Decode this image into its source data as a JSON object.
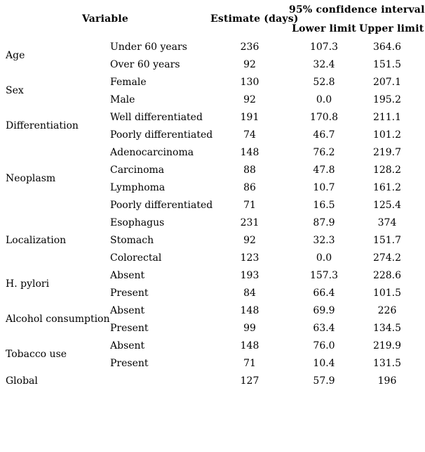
{
  "table": {
    "header": {
      "variable": "Variable",
      "estimate": "Estimate (days)",
      "ci": "95% confidence interval",
      "lower": "Lower limit",
      "upper": "Upper limit"
    },
    "groups": [
      {
        "name": "Age",
        "rows": [
          {
            "level": "Under 60 years",
            "estimate": "236",
            "lower": "107.3",
            "upper": "364.6"
          },
          {
            "level": "Over 60 years",
            "estimate": "92",
            "lower": "32.4",
            "upper": "151.5"
          }
        ]
      },
      {
        "name": "Sex",
        "rows": [
          {
            "level": "Female",
            "estimate": "130",
            "lower": "52.8",
            "upper": "207.1"
          },
          {
            "level": "Male",
            "estimate": "92",
            "lower": "0.0",
            "upper": "195.2"
          }
        ]
      },
      {
        "name": "Differentiation",
        "rows": [
          {
            "level": "Well differentiated",
            "estimate": "191",
            "lower": "170.8",
            "upper": "211.1"
          },
          {
            "level": "Poorly differentiated",
            "estimate": "74",
            "lower": "46.7",
            "upper": "101.2"
          }
        ]
      },
      {
        "name": "Neoplasm",
        "rows": [
          {
            "level": "Adenocarcinoma",
            "estimate": "148",
            "lower": "76.2",
            "upper": "219.7"
          },
          {
            "level": "Carcinoma",
            "estimate": "88",
            "lower": "47.8",
            "upper": "128.2"
          },
          {
            "level": "Lymphoma",
            "estimate": "86",
            "lower": "10.7",
            "upper": "161.2"
          },
          {
            "level": "Poorly differentiated",
            "estimate": "71",
            "lower": "16.5",
            "upper": "125.4"
          }
        ]
      },
      {
        "name": "Localization",
        "rows": [
          {
            "level": "Esophagus",
            "estimate": "231",
            "lower": "87.9",
            "upper": "374"
          },
          {
            "level": "Stomach",
            "estimate": "92",
            "lower": "32.3",
            "upper": "151.7"
          },
          {
            "level": "Colorectal",
            "estimate": "123",
            "lower": "0.0",
            "upper": "274.2"
          }
        ]
      },
      {
        "name": "H. pylori",
        "rows": [
          {
            "level": "Absent",
            "estimate": "193",
            "lower": "157.3",
            "upper": "228.6"
          },
          {
            "level": "Present",
            "estimate": "84",
            "lower": "66.4",
            "upper": "101.5"
          }
        ]
      },
      {
        "name": "Alcohol consumption",
        "rows": [
          {
            "level": "Absent",
            "estimate": "148",
            "lower": "69.9",
            "upper": "226"
          },
          {
            "level": "Present",
            "estimate": "99",
            "lower": "63.4",
            "upper": "134.5"
          }
        ]
      },
      {
        "name": "Tobacco use",
        "rows": [
          {
            "level": "Absent",
            "estimate": "148",
            "lower": "76.0",
            "upper": "219.9"
          },
          {
            "level": "Present",
            "estimate": "71",
            "lower": "10.4",
            "upper": "131.5"
          }
        ]
      },
      {
        "name": "Global",
        "rows": [
          {
            "level": "",
            "estimate": "127",
            "lower": "57.9",
            "upper": "196"
          }
        ]
      }
    ]
  },
  "chart_data": {
    "type": "table",
    "title": "",
    "columns": [
      "Variable (group)",
      "Variable (level)",
      "Estimate (days)",
      "95% CI Lower limit",
      "95% CI Upper limit"
    ],
    "rows": [
      [
        "Age",
        "Under 60 years",
        236,
        107.3,
        364.6
      ],
      [
        "Age",
        "Over 60 years",
        92,
        32.4,
        151.5
      ],
      [
        "Sex",
        "Female",
        130,
        52.8,
        207.1
      ],
      [
        "Sex",
        "Male",
        92,
        0.0,
        195.2
      ],
      [
        "Differentiation",
        "Well differentiated",
        191,
        170.8,
        211.1
      ],
      [
        "Differentiation",
        "Poorly differentiated",
        74,
        46.7,
        101.2
      ],
      [
        "Neoplasm",
        "Adenocarcinoma",
        148,
        76.2,
        219.7
      ],
      [
        "Neoplasm",
        "Carcinoma",
        88,
        47.8,
        128.2
      ],
      [
        "Neoplasm",
        "Lymphoma",
        86,
        10.7,
        161.2
      ],
      [
        "Neoplasm",
        "Poorly differentiated",
        71,
        16.5,
        125.4
      ],
      [
        "Localization",
        "Esophagus",
        231,
        87.9,
        374
      ],
      [
        "Localization",
        "Stomach",
        92,
        32.3,
        151.7
      ],
      [
        "Localization",
        "Colorectal",
        123,
        0.0,
        274.2
      ],
      [
        "H. pylori",
        "Absent",
        193,
        157.3,
        228.6
      ],
      [
        "H. pylori",
        "Present",
        84,
        66.4,
        101.5
      ],
      [
        "Alcohol consumption",
        "Absent",
        148,
        69.9,
        226
      ],
      [
        "Alcohol consumption",
        "Present",
        99,
        63.4,
        134.5
      ],
      [
        "Tobacco use",
        "Absent",
        148,
        76.0,
        219.9
      ],
      [
        "Tobacco use",
        "Present",
        71,
        10.4,
        131.5
      ],
      [
        "Global",
        "",
        127,
        57.9,
        196
      ]
    ],
    "layout": {
      "gridlines": false,
      "borders": "none"
    }
  }
}
